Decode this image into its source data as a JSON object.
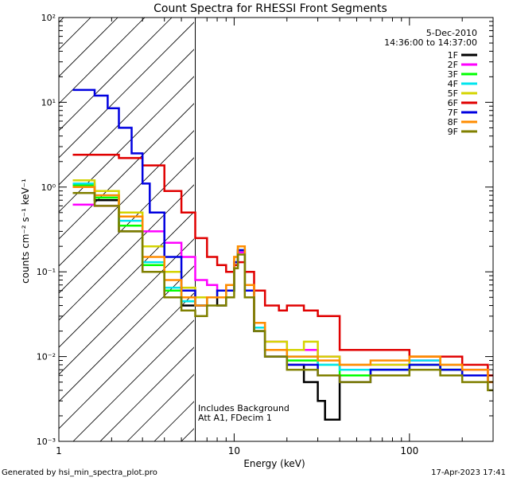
{
  "chart_data": {
    "type": "line",
    "title": "Count Spectra for RHESSI Front Segments",
    "xlabel": "Energy (keV)",
    "ylabel": "counts cm⁻² s⁻¹ keV⁻¹",
    "x_scale": "log",
    "y_scale": "log",
    "xlim": [
      1,
      300
    ],
    "ylim": [
      0.001,
      100
    ],
    "x_ticks": [
      {
        "value": 1,
        "label": "1"
      },
      {
        "value": 10,
        "label": "10"
      },
      {
        "value": 100,
        "label": "100"
      }
    ],
    "y_ticks": [
      {
        "value": 0.001,
        "label": "10⁻³"
      },
      {
        "value": 0.01,
        "label": "10⁻²"
      },
      {
        "value": 0.1,
        "label": "10⁻¹"
      },
      {
        "value": 1,
        "label": "10⁰"
      },
      {
        "value": 10,
        "label": "10¹"
      },
      {
        "value": 100,
        "label": "10²"
      }
    ],
    "date": "5-Dec-2010",
    "time_range": "14:36:00 to 14:37:00",
    "hatched_region_max_keV": 6,
    "annotations": [
      "Includes Background",
      "Att A1, FDecim 1"
    ],
    "legend_position": "top-right",
    "series": [
      {
        "name": "1F",
        "color": "#000000",
        "points": [
          [
            1.2,
            1.0
          ],
          [
            1.6,
            0.7
          ],
          [
            2.2,
            0.3
          ],
          [
            3,
            0.1
          ],
          [
            4,
            0.05
          ],
          [
            5,
            0.04
          ],
          [
            6,
            0.04
          ],
          [
            7,
            0.05
          ],
          [
            8,
            0.04
          ],
          [
            9,
            0.06
          ],
          [
            10,
            0.12
          ],
          [
            10.5,
            0.17
          ],
          [
            11.5,
            0.06
          ],
          [
            13,
            0.02
          ],
          [
            15,
            0.01
          ],
          [
            20,
            0.008
          ],
          [
            25,
            0.005
          ],
          [
            30,
            0.003
          ],
          [
            33,
            0.0018
          ],
          [
            40,
            0.006
          ],
          [
            60,
            0.007
          ],
          [
            100,
            0.008
          ],
          [
            150,
            0.007
          ],
          [
            200,
            0.006
          ],
          [
            280,
            0.005
          ]
        ]
      },
      {
        "name": "2F",
        "color": "#ff00ff",
        "points": [
          [
            1.2,
            0.62
          ],
          [
            1.6,
            0.6
          ],
          [
            2.2,
            0.45
          ],
          [
            3,
            0.3
          ],
          [
            4,
            0.22
          ],
          [
            5,
            0.15
          ],
          [
            6,
            0.08
          ],
          [
            7,
            0.07
          ],
          [
            8,
            0.06
          ],
          [
            9,
            0.07
          ],
          [
            10,
            0.13
          ],
          [
            10.5,
            0.17
          ],
          [
            11.5,
            0.07
          ],
          [
            13,
            0.025
          ],
          [
            15,
            0.015
          ],
          [
            20,
            0.012
          ],
          [
            30,
            0.01
          ],
          [
            40,
            0.008
          ],
          [
            60,
            0.008
          ],
          [
            100,
            0.009
          ],
          [
            150,
            0.008
          ],
          [
            200,
            0.007
          ],
          [
            280,
            0.006
          ]
        ]
      },
      {
        "name": "3F",
        "color": "#00ff00",
        "points": [
          [
            1.2,
            1.05
          ],
          [
            1.6,
            0.75
          ],
          [
            2.2,
            0.35
          ],
          [
            3,
            0.12
          ],
          [
            4,
            0.06
          ],
          [
            5,
            0.045
          ],
          [
            6,
            0.04
          ],
          [
            7,
            0.05
          ],
          [
            8,
            0.05
          ],
          [
            9,
            0.06
          ],
          [
            10,
            0.12
          ],
          [
            10.5,
            0.18
          ],
          [
            11.5,
            0.06
          ],
          [
            13,
            0.02
          ],
          [
            15,
            0.012
          ],
          [
            20,
            0.009
          ],
          [
            30,
            0.008
          ],
          [
            40,
            0.006
          ],
          [
            60,
            0.007
          ],
          [
            100,
            0.008
          ],
          [
            150,
            0.007
          ],
          [
            200,
            0.006
          ],
          [
            280,
            0.005
          ]
        ]
      },
      {
        "name": "4F",
        "color": "#00e5ee",
        "points": [
          [
            1.2,
            1.1
          ],
          [
            1.6,
            0.8
          ],
          [
            2.2,
            0.4
          ],
          [
            3,
            0.13
          ],
          [
            4,
            0.065
          ],
          [
            5,
            0.045
          ],
          [
            6,
            0.04
          ],
          [
            7,
            0.05
          ],
          [
            8,
            0.05
          ],
          [
            9,
            0.06
          ],
          [
            10,
            0.13
          ],
          [
            10.5,
            0.18
          ],
          [
            11.5,
            0.06
          ],
          [
            13,
            0.022
          ],
          [
            15,
            0.012
          ],
          [
            20,
            0.01
          ],
          [
            30,
            0.008
          ],
          [
            40,
            0.007
          ],
          [
            60,
            0.007
          ],
          [
            100,
            0.009
          ],
          [
            150,
            0.008
          ],
          [
            200,
            0.006
          ],
          [
            280,
            0.005
          ]
        ]
      },
      {
        "name": "5F",
        "color": "#d4d400",
        "points": [
          [
            1.2,
            1.2
          ],
          [
            1.6,
            0.9
          ],
          [
            2.2,
            0.5
          ],
          [
            3,
            0.2
          ],
          [
            4,
            0.1
          ],
          [
            5,
            0.065
          ],
          [
            6,
            0.05
          ],
          [
            7,
            0.05
          ],
          [
            8,
            0.06
          ],
          [
            9,
            0.07
          ],
          [
            10,
            0.15
          ],
          [
            10.5,
            0.2
          ],
          [
            11.5,
            0.07
          ],
          [
            13,
            0.025
          ],
          [
            15,
            0.015
          ],
          [
            20,
            0.012
          ],
          [
            25,
            0.015
          ],
          [
            30,
            0.01
          ],
          [
            40,
            0.008
          ],
          [
            60,
            0.008
          ],
          [
            100,
            0.01
          ],
          [
            150,
            0.008
          ],
          [
            200,
            0.006
          ],
          [
            280,
            0.005
          ]
        ]
      },
      {
        "name": "6F",
        "color": "#e00000",
        "points": [
          [
            1.2,
            2.4
          ],
          [
            1.6,
            2.4
          ],
          [
            2.2,
            2.2
          ],
          [
            3,
            1.8
          ],
          [
            4,
            0.9
          ],
          [
            5,
            0.5
          ],
          [
            6,
            0.25
          ],
          [
            7,
            0.15
          ],
          [
            8,
            0.12
          ],
          [
            9,
            0.1
          ],
          [
            10,
            0.12
          ],
          [
            10.5,
            0.13
          ],
          [
            11.5,
            0.1
          ],
          [
            13,
            0.06
          ],
          [
            15,
            0.04
          ],
          [
            18,
            0.035
          ],
          [
            20,
            0.04
          ],
          [
            25,
            0.035
          ],
          [
            30,
            0.03
          ],
          [
            40,
            0.012
          ],
          [
            50,
            0.012
          ],
          [
            60,
            0.012
          ],
          [
            100,
            0.01
          ],
          [
            150,
            0.01
          ],
          [
            200,
            0.008
          ],
          [
            280,
            0.006
          ]
        ]
      },
      {
        "name": "7F",
        "color": "#0000e0",
        "points": [
          [
            1.2,
            14
          ],
          [
            1.6,
            12
          ],
          [
            1.9,
            8.5
          ],
          [
            2.2,
            5
          ],
          [
            2.6,
            2.5
          ],
          [
            3,
            1.1
          ],
          [
            3.3,
            0.5
          ],
          [
            4,
            0.15
          ],
          [
            5,
            0.06
          ],
          [
            6,
            0.04
          ],
          [
            7,
            0.05
          ],
          [
            8,
            0.06
          ],
          [
            9,
            0.06
          ],
          [
            10,
            0.13
          ],
          [
            10.5,
            0.18
          ],
          [
            11.5,
            0.06
          ],
          [
            13,
            0.02
          ],
          [
            15,
            0.01
          ],
          [
            20,
            0.008
          ],
          [
            30,
            0.006
          ],
          [
            40,
            0.005
          ],
          [
            60,
            0.007
          ],
          [
            100,
            0.008
          ],
          [
            150,
            0.007
          ],
          [
            200,
            0.006
          ],
          [
            280,
            0.005
          ]
        ]
      },
      {
        "name": "8F",
        "color": "#ff8c00",
        "points": [
          [
            1.2,
            1.0
          ],
          [
            1.6,
            0.8
          ],
          [
            2.2,
            0.45
          ],
          [
            3,
            0.15
          ],
          [
            4,
            0.08
          ],
          [
            5,
            0.05
          ],
          [
            6,
            0.04
          ],
          [
            7,
            0.05
          ],
          [
            8,
            0.05
          ],
          [
            9,
            0.07
          ],
          [
            10,
            0.15
          ],
          [
            10.5,
            0.2
          ],
          [
            11.5,
            0.07
          ],
          [
            13,
            0.025
          ],
          [
            15,
            0.012
          ],
          [
            20,
            0.01
          ],
          [
            30,
            0.009
          ],
          [
            40,
            0.008
          ],
          [
            60,
            0.009
          ],
          [
            100,
            0.01
          ],
          [
            150,
            0.008
          ],
          [
            200,
            0.007
          ],
          [
            280,
            0.005
          ]
        ]
      },
      {
        "name": "9F",
        "color": "#808000",
        "points": [
          [
            1.2,
            0.85
          ],
          [
            1.6,
            0.6
          ],
          [
            2.2,
            0.3
          ],
          [
            3,
            0.1
          ],
          [
            4,
            0.05
          ],
          [
            5,
            0.035
          ],
          [
            6,
            0.03
          ],
          [
            7,
            0.04
          ],
          [
            8,
            0.04
          ],
          [
            9,
            0.05
          ],
          [
            10,
            0.11
          ],
          [
            10.5,
            0.16
          ],
          [
            11.5,
            0.05
          ],
          [
            13,
            0.02
          ],
          [
            15,
            0.01
          ],
          [
            20,
            0.007
          ],
          [
            30,
            0.006
          ],
          [
            40,
            0.005
          ],
          [
            60,
            0.006
          ],
          [
            100,
            0.007
          ],
          [
            150,
            0.006
          ],
          [
            200,
            0.005
          ],
          [
            280,
            0.004
          ]
        ]
      }
    ]
  },
  "footer": {
    "generated_by": "Generated by hsi_min_spectra_plot.pro",
    "timestamp": "17-Apr-2023 17:41"
  }
}
